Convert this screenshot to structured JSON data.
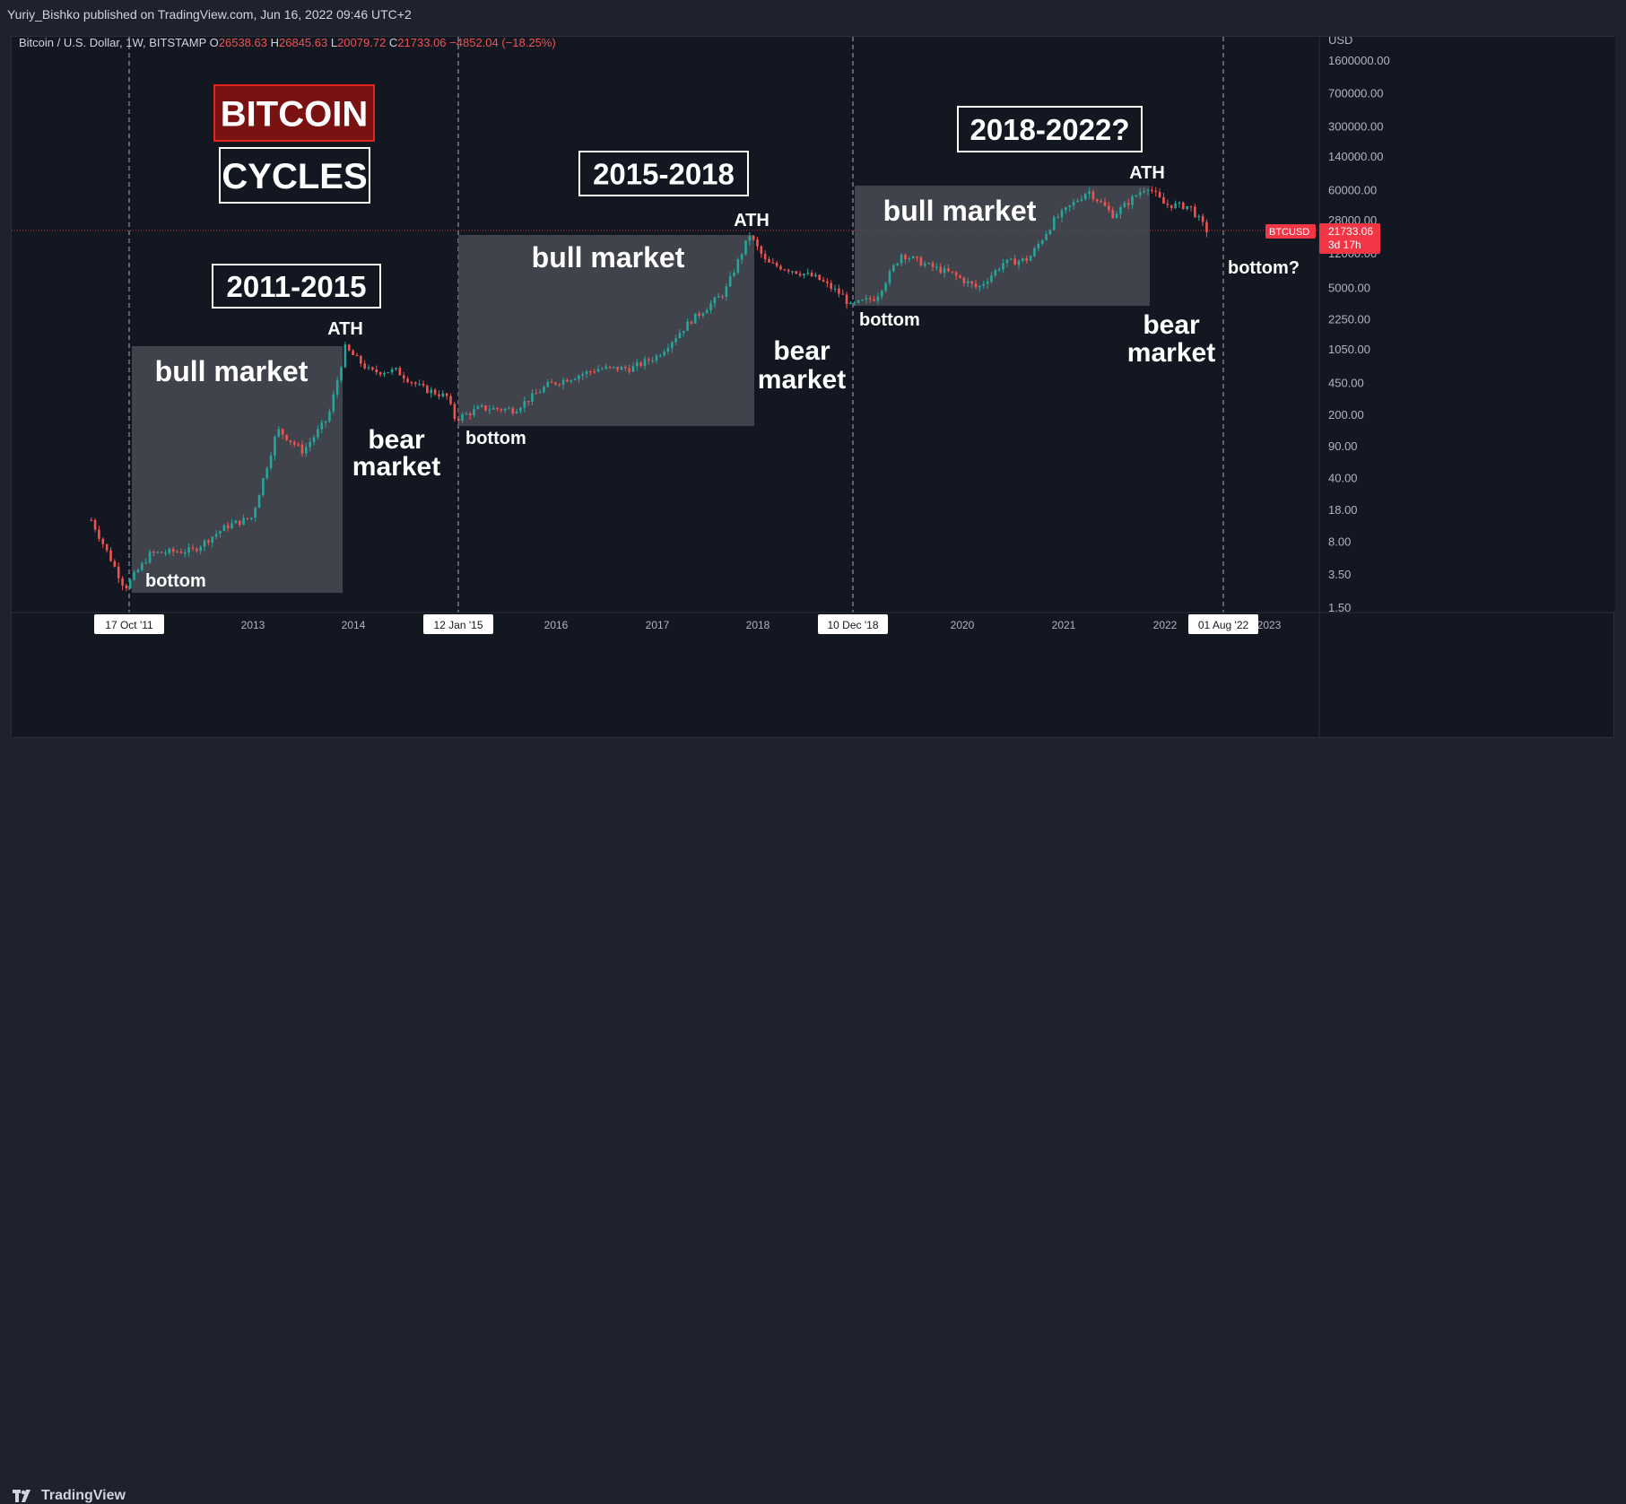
{
  "publisher_line": "Yuriy_Bishko published on TradingView.com, Jun 16, 2022 09:46 UTC+2",
  "footer": {
    "brand": "TradingView"
  },
  "symbol_info": {
    "name": "Bitcoin / U.S. Dollar, 1W, BITSTAMP",
    "open_label": "O",
    "open": "26538.63",
    "high_label": "H",
    "high": "26845.63",
    "low_label": "L",
    "low": "20079.72",
    "close_label": "C",
    "close": "21733.06",
    "change": "−4852.04 (−18.25%)"
  },
  "colors": {
    "up": "#26a69a",
    "down": "#ef5350",
    "accent_red": "#f23645",
    "panel": "#131722"
  },
  "chart_data": {
    "type": "candlestick",
    "y_axis": {
      "unit": "USD",
      "scale": "log",
      "ticks": [
        "1600000.00",
        "700000.00",
        "300000.00",
        "140000.00",
        "60000.00",
        "28000.00",
        "12000.00",
        "5000.00",
        "2250.00",
        "1050.00",
        "450.00",
        "200.00",
        "90.00",
        "40.00",
        "18.00",
        "8.00",
        "3.50",
        "1.50"
      ]
    },
    "x_axis": {
      "year_ticks": [
        "2013",
        "2014",
        "2016",
        "2017",
        "2018",
        "2020",
        "2021",
        "2022",
        "2023"
      ],
      "highlighted_dates": [
        "17 Oct '11",
        "12 Jan '15",
        "10 Dec '18",
        "01 Aug '22"
      ]
    },
    "price_label": {
      "symbol": "BTCUSD",
      "price": "21733.06",
      "countdown": "3d 17h"
    },
    "series": [
      {
        "points": [
          [
            "2011-06",
            14
          ],
          [
            "2011-10",
            2.5
          ],
          [
            "2012-01",
            6
          ],
          [
            "2012-06",
            6.5
          ],
          [
            "2012-10",
            12
          ],
          [
            "2013-01",
            15
          ],
          [
            "2013-04",
            140
          ],
          [
            "2013-07",
            80
          ],
          [
            "2013-10",
            190
          ],
          [
            "2013-12",
            1100
          ],
          [
            "2014-03",
            600
          ],
          [
            "2014-06",
            620
          ],
          [
            "2014-09",
            400
          ],
          [
            "2014-12",
            320
          ],
          [
            "2015-01",
            180
          ],
          [
            "2015-04",
            240
          ],
          [
            "2015-08",
            230
          ],
          [
            "2015-12",
            430
          ],
          [
            "2016-06",
            650
          ],
          [
            "2016-10",
            660
          ],
          [
            "2017-01",
            900
          ],
          [
            "2017-05",
            2200
          ],
          [
            "2017-09",
            4500
          ],
          [
            "2017-12",
            19500
          ],
          [
            "2018-02",
            9500
          ],
          [
            "2018-05",
            8000
          ],
          [
            "2018-08",
            6500
          ],
          [
            "2018-11",
            4200
          ],
          [
            "2018-12",
            3200
          ],
          [
            "2019-03",
            4000
          ],
          [
            "2019-06",
            12000
          ],
          [
            "2019-09",
            9000
          ],
          [
            "2019-12",
            7200
          ],
          [
            "2020-03",
            5000
          ],
          [
            "2020-06",
            9500
          ],
          [
            "2020-09",
            10500
          ],
          [
            "2020-12",
            28000
          ],
          [
            "2021-04",
            60000
          ],
          [
            "2021-07",
            32000
          ],
          [
            "2021-11",
            68000
          ],
          [
            "2022-01",
            42000
          ],
          [
            "2022-04",
            40000
          ],
          [
            "2022-06",
            21733
          ]
        ]
      }
    ],
    "annotations": {
      "title_1": "BITCOIN",
      "title_2": "CYCLES",
      "cycle_2011": "2011-2015",
      "cycle_2015": "2015-2018",
      "cycle_2018": "2018-2022?",
      "bull_1": "bull market",
      "bull_2": "bull market",
      "bull_3": "bull market",
      "bear_1": [
        "bear",
        "market"
      ],
      "bear_2": [
        "bear",
        "market"
      ],
      "bear_3": [
        "bear",
        "market"
      ],
      "bottom_1": "bottom",
      "bottom_2": "bottom",
      "bottom_3": "bottom",
      "bottom_4": "bottom?",
      "ath_1": "ATH",
      "ath_2": "ATH",
      "ath_3": "ATH"
    }
  }
}
